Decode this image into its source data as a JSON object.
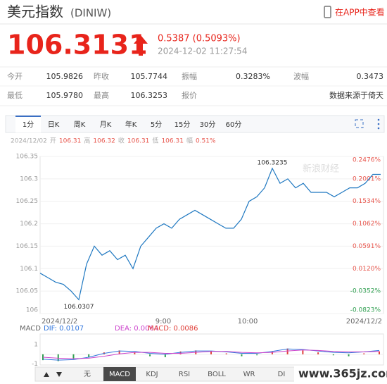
{
  "header": {
    "title": "美元指数",
    "code": "(DINIW)",
    "app_link": "在APP中查看"
  },
  "quote": {
    "price": "106.3131",
    "change": "0.5387 (0.5093%)",
    "time": "2024-12-02 11:27:54"
  },
  "stats": {
    "rows": [
      [
        {
          "label": "今开",
          "value": "105.9826"
        },
        {
          "label": "昨收",
          "value": "105.7744"
        },
        {
          "label": "振幅",
          "value": "0.3283%"
        },
        {
          "label": "波幅",
          "value": "0.3473"
        }
      ],
      [
        {
          "label": "最低",
          "value": "105.9780"
        },
        {
          "label": "最高",
          "value": "106.3253"
        },
        {
          "label": "报价",
          "value": "数据来源于倚天"
        }
      ]
    ]
  },
  "tabs": {
    "items": [
      "1分",
      "日K",
      "周K",
      "月K",
      "年K",
      "5分",
      "15分",
      "30分",
      "60分"
    ],
    "active": 0
  },
  "summary": {
    "date": "2024/12/02",
    "items": [
      {
        "label": "开",
        "value": "106.31"
      },
      {
        "label": "高",
        "value": "106.32"
      },
      {
        "label": "收",
        "value": "106.31"
      },
      {
        "label": "低",
        "value": "106.31"
      },
      {
        "label": "幅",
        "value": "0.51%"
      }
    ]
  },
  "chart_data": {
    "type": "line",
    "color": "#1f78c1",
    "watermark": "新浪财经",
    "label_extremes": true,
    "values": [
      106.09,
      106.08,
      106.07,
      106.065,
      106.05,
      106.0307,
      106.11,
      106.15,
      106.13,
      106.14,
      106.12,
      106.13,
      106.1,
      106.15,
      106.17,
      106.19,
      106.2,
      106.19,
      106.21,
      106.22,
      106.23,
      106.22,
      106.21,
      106.2,
      106.19,
      106.19,
      106.21,
      106.25,
      106.26,
      106.28,
      106.3235,
      106.29,
      106.3,
      106.28,
      106.29,
      106.27,
      106.27,
      106.27,
      106.26,
      106.27,
      106.28,
      106.28,
      106.29,
      106.31,
      106.31
    ],
    "ylim": [
      106,
      106.35
    ],
    "yticks": [
      106.35,
      106.3,
      106.25,
      106.2,
      106.15,
      106.1,
      106.05,
      106
    ],
    "y2lim": [
      -0.0823,
      0.2476
    ],
    "y2ticks": [
      {
        "value": 0.2476,
        "label": "0.2476%"
      },
      {
        "value": 0.2001,
        "label": "0.2001%"
      },
      {
        "value": 0.1534,
        "label": "0.1534%"
      },
      {
        "value": 0.1062,
        "label": "0.1062%"
      },
      {
        "value": 0.0591,
        "label": "0.0591%"
      },
      {
        "value": 0.012,
        "label": "0.0120%"
      },
      {
        "value": -0.0352,
        "label": "-0.0352%"
      },
      {
        "value": -0.0823,
        "label": "-0.0823%"
      }
    ],
    "y2_up_color": "#e8584f",
    "y2_down_color": "#2e9e4f",
    "xtick_labels": [
      "2024/12/2",
      "9:00",
      "10:00",
      "2024/12/2"
    ],
    "grid": true
  },
  "macd": {
    "title": "MACD",
    "ylim": [
      -1.1,
      2.1
    ],
    "yticks": [
      1,
      -1
    ],
    "series": [
      {
        "label": "DIF: 0.0107",
        "color": "#3377dd",
        "values": [
          -0.5,
          -0.6,
          -0.55,
          -0.3,
          0.1,
          0.35,
          0.3,
          0.1,
          0.0,
          0.2,
          0.35,
          0.35,
          0.25,
          0.1,
          0.1,
          0.3,
          0.55,
          0.5,
          0.35,
          0.2,
          0.15,
          0.25,
          0.4
        ]
      },
      {
        "label": "DEA: 0.0064",
        "color": "#cc44cc",
        "values": [
          -0.3,
          -0.4,
          -0.45,
          -0.4,
          -0.2,
          0.05,
          0.2,
          0.2,
          0.1,
          0.1,
          0.2,
          0.3,
          0.3,
          0.2,
          0.15,
          0.2,
          0.35,
          0.45,
          0.4,
          0.3,
          0.25,
          0.25,
          0.3
        ]
      }
    ],
    "histogram": {
      "label": "MACD: 0.0086",
      "up_color": "#e0403a",
      "down_color": "#2e9e4f",
      "values": [
        -0.6,
        -0.7,
        -0.5,
        -0.3,
        0.2,
        0.4,
        0.2,
        -0.2,
        -0.3,
        0.3,
        0.4,
        0.3,
        0.1,
        -0.2,
        -0.1,
        0.3,
        0.6,
        0.4,
        0.2,
        -0.1,
        -0.2,
        0.1,
        0.3
      ]
    }
  },
  "indicator_tabs": {
    "items": [
      "无",
      "MACD",
      "KDJ",
      "RSI",
      "BOLL",
      "WR",
      "DI"
    ],
    "active": 1
  },
  "watermark": "www.365jz.com"
}
